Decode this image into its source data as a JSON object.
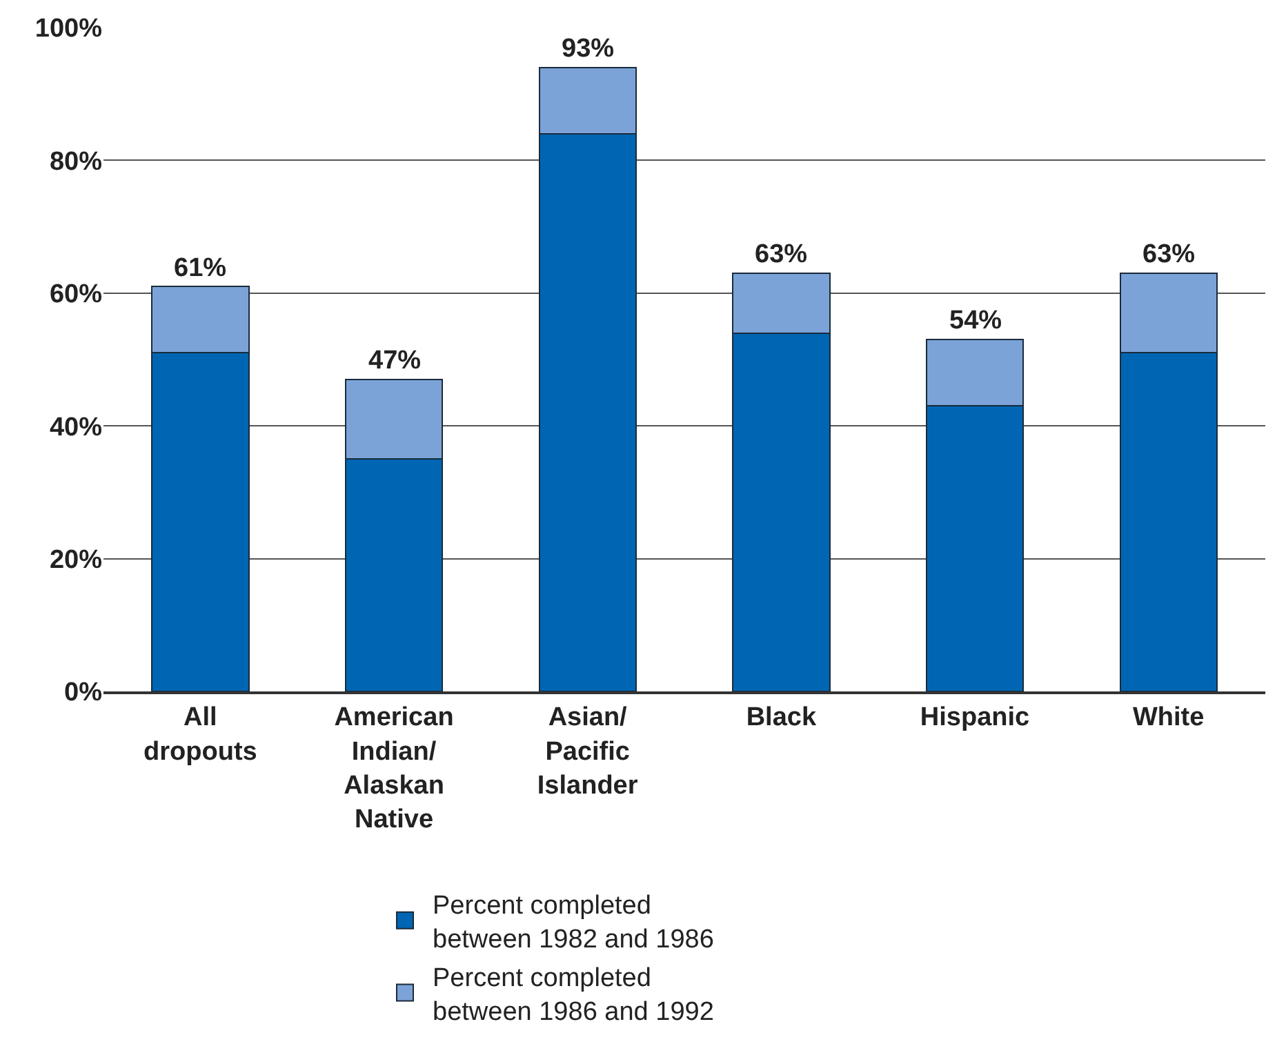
{
  "chart_data": {
    "type": "bar",
    "stacked": true,
    "categories": [
      "All\ndropouts",
      "American\nIndian/\nAlaskan\nNative",
      "Asian/\nPacific\nIslander",
      "Black",
      "Hispanic",
      "White"
    ],
    "series": [
      {
        "name": "Percent completed\nbetween 1982 and 1986",
        "color": "#0066b3",
        "values": [
          51,
          35,
          84,
          54,
          43,
          51
        ]
      },
      {
        "name": "Percent completed\nbetween 1986 and 1992",
        "color": "#7ba3d8",
        "values": [
          10,
          12,
          10,
          9,
          10,
          12
        ]
      }
    ],
    "totals": [
      "61%",
      "47%",
      "93%",
      "63%",
      "54%",
      "63%"
    ],
    "ylim": [
      0,
      100
    ],
    "yticks": [
      {
        "value": 0,
        "label": "0%"
      },
      {
        "value": 20,
        "label": "20%"
      },
      {
        "value": 40,
        "label": "40%"
      },
      {
        "value": 60,
        "label": "60%"
      },
      {
        "value": 80,
        "label": "80%"
      },
      {
        "value": 100,
        "label": "100%"
      }
    ],
    "grid": "y",
    "legend": "bottom"
  }
}
